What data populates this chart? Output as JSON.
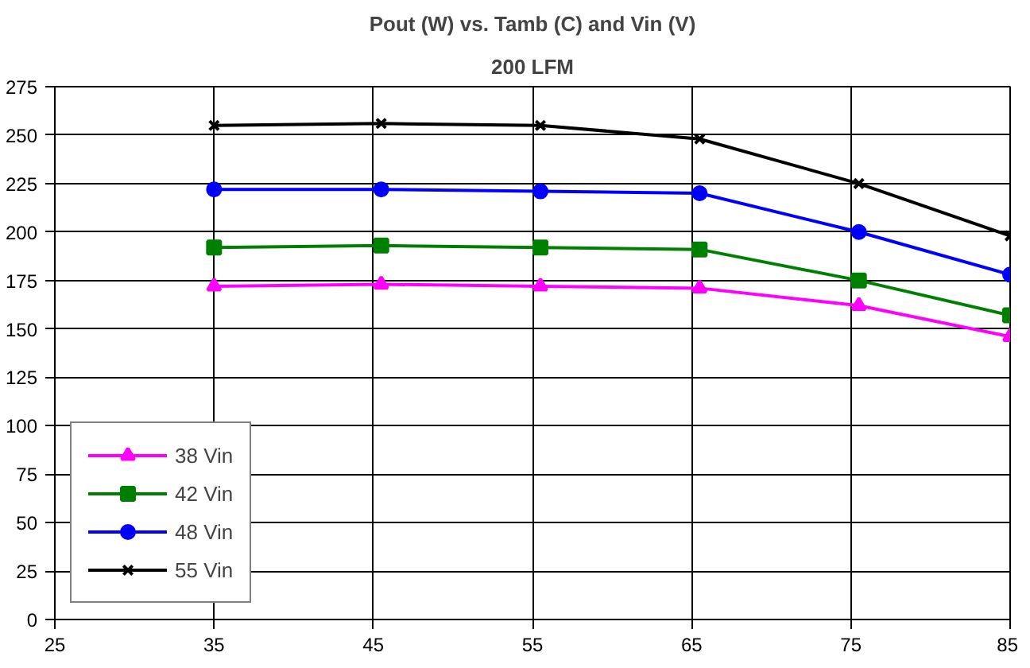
{
  "chart_data": {
    "type": "line",
    "title": "Pout (W) vs. Tamb (C) and Vin (V)",
    "subtitle": "200 LFM",
    "x": [
      35,
      45.5,
      55.5,
      65.5,
      75.5,
      85
    ],
    "series": [
      {
        "name": "38 Vin",
        "color": "#ff00ff",
        "marker": "triangle",
        "values": [
          172,
          173,
          172,
          171,
          162,
          146
        ]
      },
      {
        "name": "42 Vin",
        "color": "#008000",
        "marker": "square",
        "values": [
          192,
          193,
          192,
          191,
          175,
          157
        ]
      },
      {
        "name": "48 Vin",
        "color": "#0000ff",
        "marker": "circle",
        "values": [
          222,
          222,
          221,
          220,
          200,
          178
        ]
      },
      {
        "name": "55 Vin",
        "color": "#000000",
        "marker": "cross",
        "values": [
          255,
          256,
          255,
          248,
          225,
          198
        ]
      }
    ],
    "xlim": [
      25,
      85
    ],
    "xticks": [
      25,
      35,
      45,
      55,
      65,
      75,
      85
    ],
    "ylim": [
      0,
      275
    ],
    "yticks": [
      0,
      25,
      50,
      75,
      100,
      125,
      150,
      175,
      200,
      225,
      250,
      275
    ],
    "grid": true,
    "legend": "bottom left",
    "line_style": "solid"
  }
}
